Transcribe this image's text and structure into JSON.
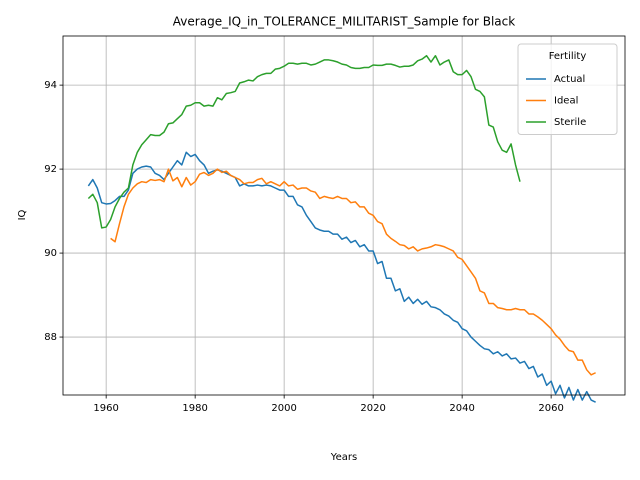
{
  "chart_data": {
    "type": "line",
    "title": "Average_IQ_in_TOLERANCE_MILITARIST_Sample for Black",
    "x_label": "Years",
    "y_label": "IQ",
    "legend_title": "Fertility",
    "legend_position": "upper right",
    "grid": true,
    "xlim": [
      1950.3,
      2076.6
    ],
    "ylim": [
      86.62,
      95.17
    ],
    "xticks": [
      1960,
      1980,
      2000,
      2020,
      2040,
      2060
    ],
    "yticks": [
      88,
      90,
      92,
      94
    ],
    "x": [
      1956,
      1957,
      1958,
      1959,
      1960,
      1961,
      1962,
      1963,
      1964,
      1965,
      1966,
      1967,
      1968,
      1969,
      1970,
      1971,
      1972,
      1973,
      1974,
      1975,
      1976,
      1977,
      1978,
      1979,
      1980,
      1981,
      1982,
      1983,
      1984,
      1985,
      1986,
      1987,
      1988,
      1989,
      1990,
      1991,
      1992,
      1993,
      1994,
      1995,
      1996,
      1997,
      1998,
      1999,
      2000,
      2001,
      2002,
      2003,
      2004,
      2005,
      2006,
      2007,
      2008,
      2009,
      2010,
      2011,
      2012,
      2013,
      2014,
      2015,
      2016,
      2017,
      2018,
      2019,
      2020,
      2021,
      2022,
      2023,
      2024,
      2025,
      2026,
      2027,
      2028,
      2029,
      2030,
      2031,
      2032,
      2033,
      2034,
      2035,
      2036,
      2037,
      2038,
      2039,
      2040,
      2041,
      2042,
      2043,
      2044,
      2045,
      2046,
      2047,
      2048,
      2049,
      2050,
      2051,
      2052,
      2053,
      2054,
      2055,
      2056,
      2057,
      2058,
      2059,
      2060,
      2061,
      2062,
      2063,
      2064,
      2065,
      2066,
      2067,
      2068,
      2069,
      2070
    ],
    "series": [
      {
        "name": "Actual",
        "color": "#1f77b4",
        "values": [
          91.6,
          91.75,
          91.55,
          91.2,
          91.17,
          91.18,
          91.25,
          91.35,
          91.35,
          91.5,
          91.9,
          92.0,
          92.05,
          92.07,
          92.05,
          91.9,
          91.85,
          91.75,
          91.9,
          92.05,
          92.2,
          92.1,
          92.4,
          92.3,
          92.35,
          92.2,
          92.1,
          91.9,
          91.95,
          91.98,
          91.95,
          91.9,
          91.85,
          91.8,
          91.6,
          91.65,
          91.6,
          91.6,
          91.62,
          91.6,
          91.62,
          91.6,
          91.55,
          91.5,
          91.5,
          91.35,
          91.35,
          91.15,
          91.1,
          90.9,
          90.75,
          90.6,
          90.55,
          90.52,
          90.52,
          90.45,
          90.45,
          90.33,
          90.38,
          90.25,
          90.3,
          90.15,
          90.2,
          90.05,
          90.05,
          89.75,
          89.8,
          89.4,
          89.4,
          89.1,
          89.15,
          88.85,
          88.95,
          88.8,
          88.9,
          88.78,
          88.85,
          88.72,
          88.7,
          88.65,
          88.55,
          88.5,
          88.4,
          88.35,
          88.2,
          88.15,
          88.0,
          87.9,
          87.8,
          87.72,
          87.7,
          87.6,
          87.65,
          87.55,
          87.6,
          87.48,
          87.5,
          87.38,
          87.42,
          87.25,
          87.3,
          87.05,
          87.12,
          86.85,
          86.95,
          86.65,
          86.85,
          86.55,
          86.8,
          86.5,
          86.75,
          86.5,
          86.7,
          86.5,
          86.45
        ]
      },
      {
        "name": "Ideal",
        "color": "#ff7f0e",
        "values": [
          null,
          null,
          null,
          null,
          null,
          90.35,
          90.27,
          90.7,
          91.1,
          91.4,
          91.55,
          91.65,
          91.7,
          91.68,
          91.75,
          91.73,
          91.75,
          91.7,
          92.0,
          91.72,
          91.8,
          91.58,
          91.8,
          91.62,
          91.7,
          91.88,
          91.92,
          91.85,
          91.9,
          92.0,
          91.92,
          91.95,
          91.85,
          91.8,
          91.75,
          91.65,
          91.68,
          91.68,
          91.75,
          91.78,
          91.65,
          91.7,
          91.65,
          91.6,
          91.7,
          91.6,
          91.62,
          91.52,
          91.55,
          91.55,
          91.48,
          91.45,
          91.3,
          91.35,
          91.32,
          91.3,
          91.35,
          91.3,
          91.3,
          91.2,
          91.22,
          91.1,
          91.1,
          90.95,
          90.9,
          90.75,
          90.7,
          90.45,
          90.35,
          90.28,
          90.2,
          90.18,
          90.1,
          90.15,
          90.05,
          90.1,
          90.12,
          90.15,
          90.2,
          90.18,
          90.15,
          90.1,
          90.05,
          89.9,
          89.85,
          89.7,
          89.55,
          89.4,
          89.1,
          89.05,
          88.8,
          88.8,
          88.7,
          88.68,
          88.65,
          88.65,
          88.68,
          88.65,
          88.65,
          88.55,
          88.55,
          88.48,
          88.4,
          88.3,
          88.2,
          88.05,
          87.95,
          87.8,
          87.68,
          87.65,
          87.45,
          87.45,
          87.22,
          87.1,
          87.15
        ]
      },
      {
        "name": "Sterile",
        "color": "#2ca02c",
        "values": [
          91.3,
          91.4,
          91.2,
          90.6,
          90.62,
          90.8,
          91.1,
          91.3,
          91.45,
          91.55,
          92.1,
          92.4,
          92.58,
          92.7,
          92.82,
          92.8,
          92.8,
          92.88,
          93.08,
          93.1,
          93.2,
          93.3,
          93.5,
          93.52,
          93.58,
          93.58,
          93.5,
          93.52,
          93.5,
          93.7,
          93.65,
          93.8,
          93.82,
          93.85,
          94.05,
          94.08,
          94.12,
          94.1,
          94.2,
          94.25,
          94.28,
          94.28,
          94.38,
          94.4,
          94.45,
          94.52,
          94.52,
          94.5,
          94.52,
          94.52,
          94.48,
          94.5,
          94.55,
          94.6,
          94.6,
          94.58,
          94.55,
          94.5,
          94.48,
          94.42,
          94.4,
          94.4,
          94.42,
          94.42,
          94.48,
          94.47,
          94.47,
          94.5,
          94.5,
          94.47,
          94.43,
          94.45,
          94.45,
          94.48,
          94.58,
          94.62,
          94.7,
          94.55,
          94.7,
          94.48,
          94.55,
          94.6,
          94.32,
          94.25,
          94.25,
          94.35,
          94.2,
          93.9,
          93.85,
          93.72,
          93.05,
          93.0,
          92.65,
          92.45,
          92.4,
          92.6,
          92.1,
          91.7,
          null,
          null,
          null,
          null,
          null,
          null,
          null,
          null,
          null,
          null,
          null,
          null,
          null,
          null,
          null,
          null,
          null
        ]
      }
    ]
  }
}
